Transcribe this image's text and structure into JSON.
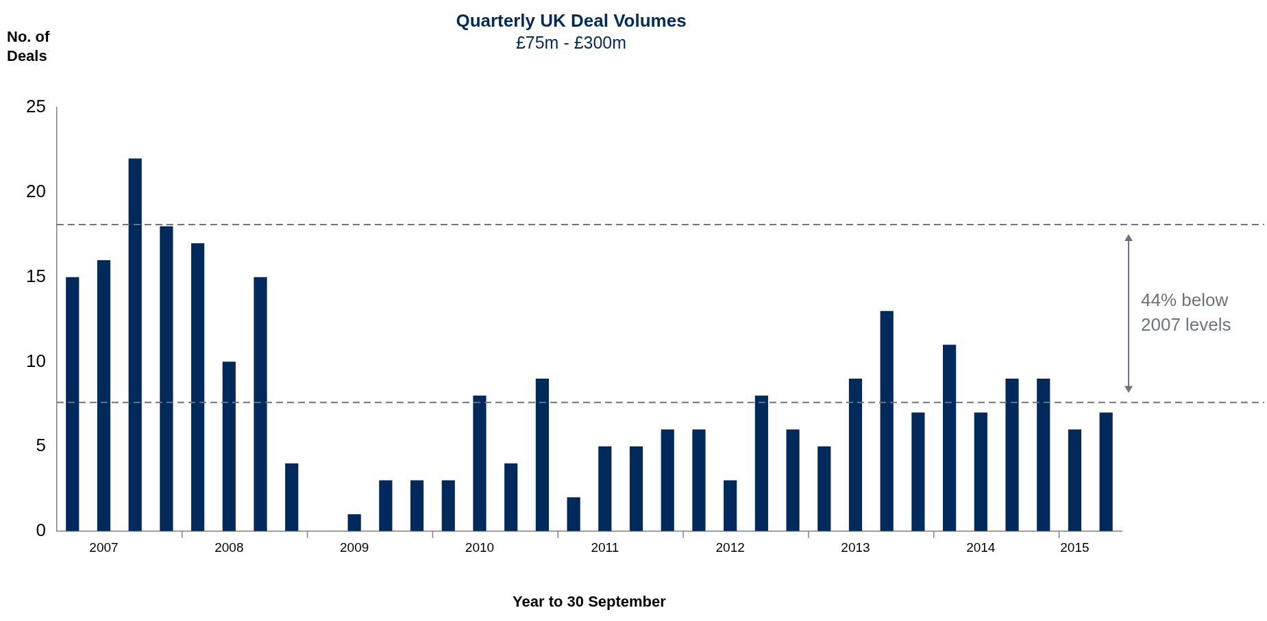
{
  "chart_data": {
    "type": "bar",
    "title": "Quarterly UK Deal Volumes",
    "subtitle": "£75m - £300m",
    "ylabel": "No. of Deals",
    "xlabel": "Year to 30 September",
    "categories": [
      null,
      "2007",
      null,
      null,
      null,
      "2008",
      null,
      null,
      null,
      "2009",
      null,
      null,
      null,
      "2010",
      null,
      null,
      null,
      "2011",
      null,
      null,
      null,
      "2012",
      null,
      null,
      null,
      "2013",
      null,
      null,
      null,
      "2014",
      null,
      null,
      "2015",
      null
    ],
    "values": [
      15,
      16,
      22,
      18,
      17,
      10,
      15,
      4,
      0,
      1,
      3,
      3,
      3,
      8,
      4,
      9,
      2,
      5,
      5,
      6,
      6,
      3,
      8,
      6,
      5,
      9,
      13,
      7,
      11,
      7,
      9,
      9,
      6,
      7
    ],
    "color": "#002a5c",
    "ylim": [
      0,
      25
    ],
    "yticks": [
      0,
      5,
      10,
      15,
      20,
      25
    ],
    "grid": false,
    "legend": false,
    "ref_lines": [
      {
        "axis": "y",
        "value": 18.1,
        "color": "#6b7280",
        "line_style": "dashed"
      },
      {
        "axis": "y",
        "value": 7.6,
        "color": "#6b7280",
        "line_style": "dashed"
      }
    ],
    "annotations": [
      "44% below\n2007 levels"
    ]
  }
}
